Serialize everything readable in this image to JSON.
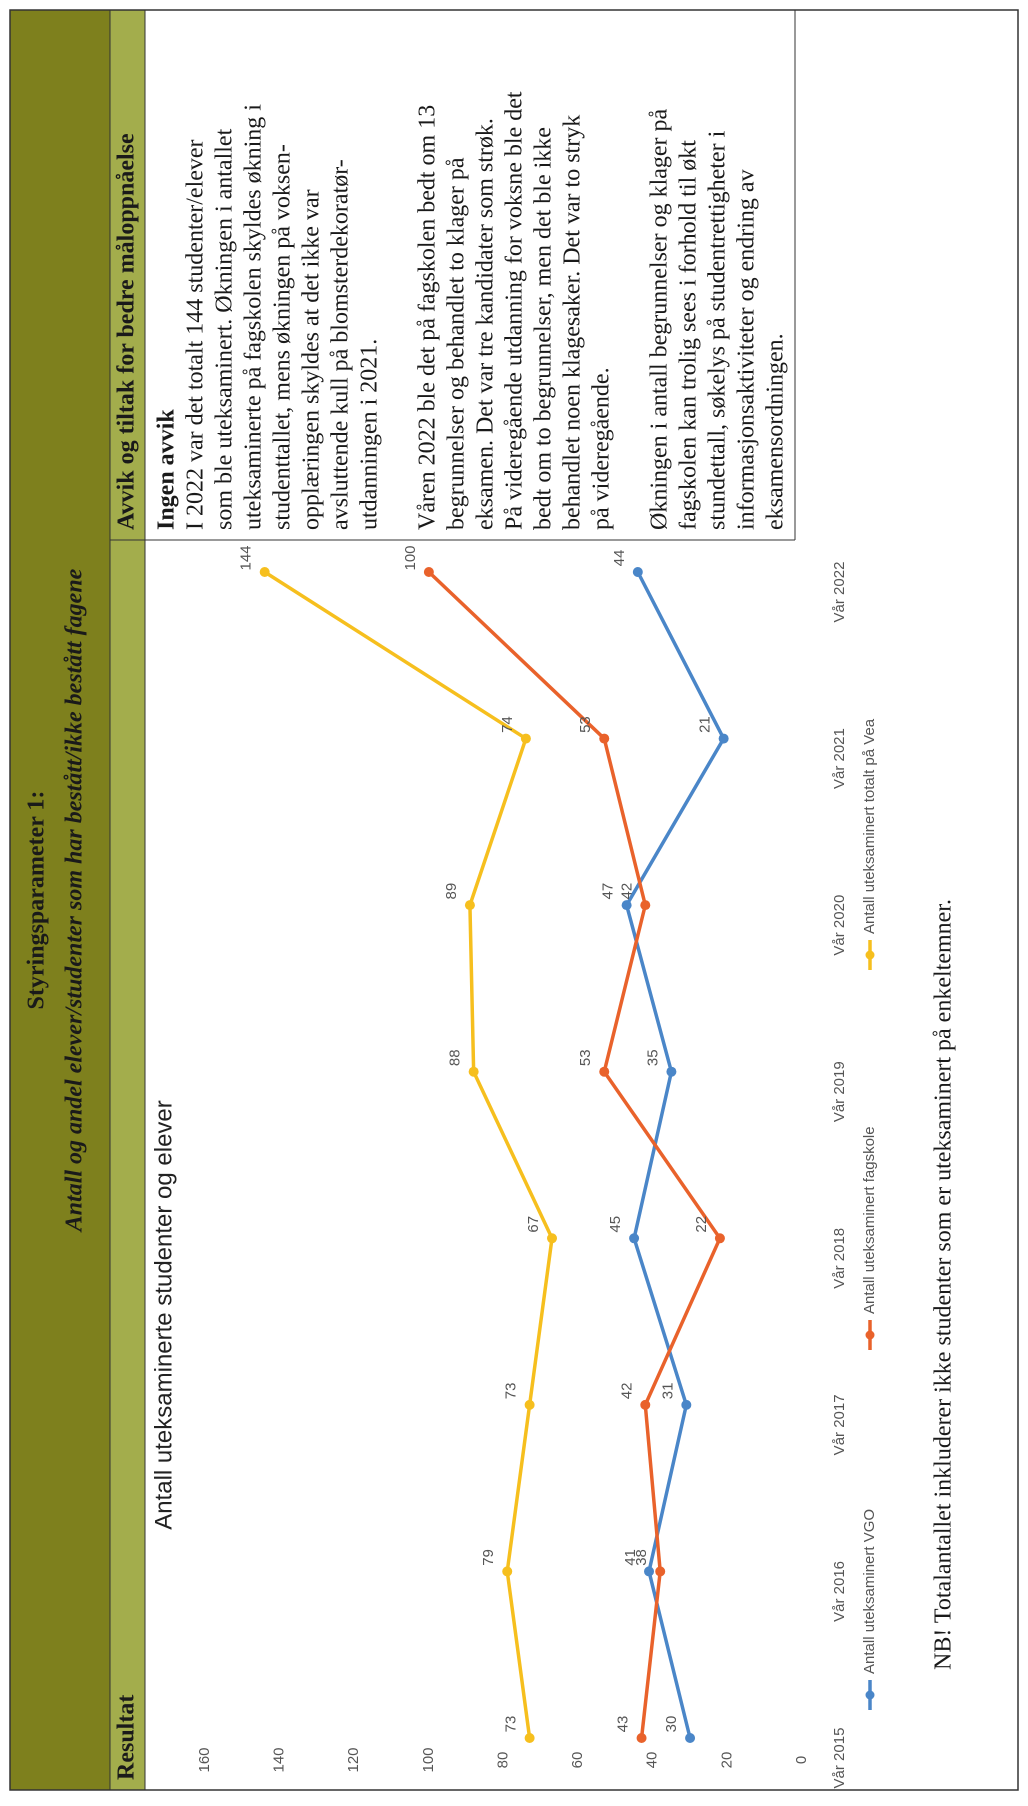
{
  "header": {
    "title": "Styringsparameter 1:",
    "subtitle": "Antall og andel elever/studenter som har bestått/ikke bestått fagene"
  },
  "columns": [
    "Resultat",
    "Avvik og tiltak for bedre måloppnåelse"
  ],
  "chart_data": {
    "type": "line",
    "title": "Antall uteksaminerte studenter og elever",
    "categories": [
      "Vår 2015",
      "Vår 2016",
      "Vår 2017",
      "Vår 2018",
      "Vår 2019",
      "Vår 2020",
      "Vår 2021",
      "Vår 2022"
    ],
    "series": [
      {
        "name": "Antall uteksaminert VGO",
        "color": "#4a86c8",
        "values": [
          30,
          41,
          31,
          45,
          35,
          47,
          21,
          44
        ]
      },
      {
        "name": "Antall uteksaminert fagskole",
        "color": "#e9622b",
        "values": [
          43,
          38,
          42,
          22,
          53,
          42,
          53,
          100
        ]
      },
      {
        "name": "Antall uteksaminert totalt på Vea",
        "color": "#f6bf1e",
        "values": [
          73,
          79,
          73,
          67,
          88,
          89,
          74,
          144
        ]
      }
    ],
    "ylim": [
      0,
      160
    ],
    "yticks": [
      0,
      20,
      40,
      60,
      80,
      100,
      120,
      140,
      160
    ],
    "grid": false,
    "legend": "bottom"
  },
  "assessment": {
    "heading": "Ingen avvik",
    "paragraphs": [
      [
        "I 2022 var det totalt 144 studenter/elever",
        "som ble uteksaminert. Økningen i antallet",
        "uteksaminerte på fagskolen skyldes økning i",
        "studenttallet, mens økningen på voksen-",
        "opplæringen skyldes at det ikke var",
        "avsluttende kull på blomsterdekoratør-",
        "utdanningen i 2021."
      ],
      [
        "Våren 2022 ble det på fagskolen bedt om 13",
        "begrunnelser og behandlet to klager på",
        "eksamen. Det var tre kandidater som strøk.",
        "På videregående utdanning for voksne ble det",
        "bedt om to begrunnelser, men det ble ikke",
        "behandlet noen klagesaker. Det var to stryk",
        "på videregående."
      ],
      [
        "Økningen i antall begrunnelser og klager på",
        "fagskolen kan trolig sees i forhold til økt",
        "stundettall, søkelys på studentrettigheter i",
        "informasjonsaktiviteter og endring av",
        "eksamensordningen."
      ]
    ]
  },
  "footnote": "NB! Totalantallet inkluderer ikke studenter som er uteksaminert på enkeltemner."
}
